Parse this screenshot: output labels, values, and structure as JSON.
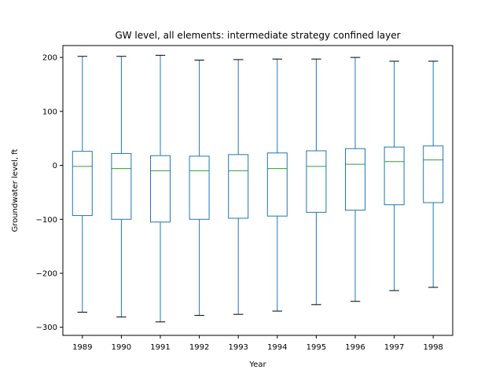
{
  "chart_data": {
    "type": "box",
    "title": "GW level, all elements: intermediate strategy confined layer",
    "xlabel": "Year",
    "ylabel": "Groundwater level, ft",
    "ylim": [
      -315,
      222
    ],
    "yticks": [
      200,
      100,
      0,
      -100,
      -200,
      -300
    ],
    "ytick_labels": [
      "200",
      "100",
      "0",
      "−100",
      "−200",
      "−300"
    ],
    "grid": false,
    "categories": [
      "1989",
      "1990",
      "1991",
      "1992",
      "1993",
      "1994",
      "1995",
      "1996",
      "1997",
      "1998"
    ],
    "boxes": [
      {
        "whisker_low": -272,
        "q1": -93,
        "median": -2,
        "q3": 26,
        "whisker_high": 202
      },
      {
        "whisker_low": -281,
        "q1": -100,
        "median": -6,
        "q3": 22,
        "whisker_high": 202
      },
      {
        "whisker_low": -290,
        "q1": -105,
        "median": -10,
        "q3": 18,
        "whisker_high": 204
      },
      {
        "whisker_low": -278,
        "q1": -100,
        "median": -10,
        "q3": 17,
        "whisker_high": 195
      },
      {
        "whisker_low": -276,
        "q1": -98,
        "median": -10,
        "q3": 20,
        "whisker_high": 196
      },
      {
        "whisker_low": -270,
        "q1": -94,
        "median": -6,
        "q3": 23,
        "whisker_high": 197
      },
      {
        "whisker_low": -258,
        "q1": -87,
        "median": -2,
        "q3": 27,
        "whisker_high": 197
      },
      {
        "whisker_low": -252,
        "q1": -83,
        "median": 2,
        "q3": 31,
        "whisker_high": 200
      },
      {
        "whisker_low": -232,
        "q1": -73,
        "median": 7,
        "q3": 34,
        "whisker_high": 193
      },
      {
        "whisker_low": -226,
        "q1": -69,
        "median": 10,
        "q3": 36,
        "whisker_high": 193
      }
    ],
    "colors": {
      "box": "#1f77b4",
      "median": "#2ca02c",
      "caps": "#000000"
    }
  }
}
